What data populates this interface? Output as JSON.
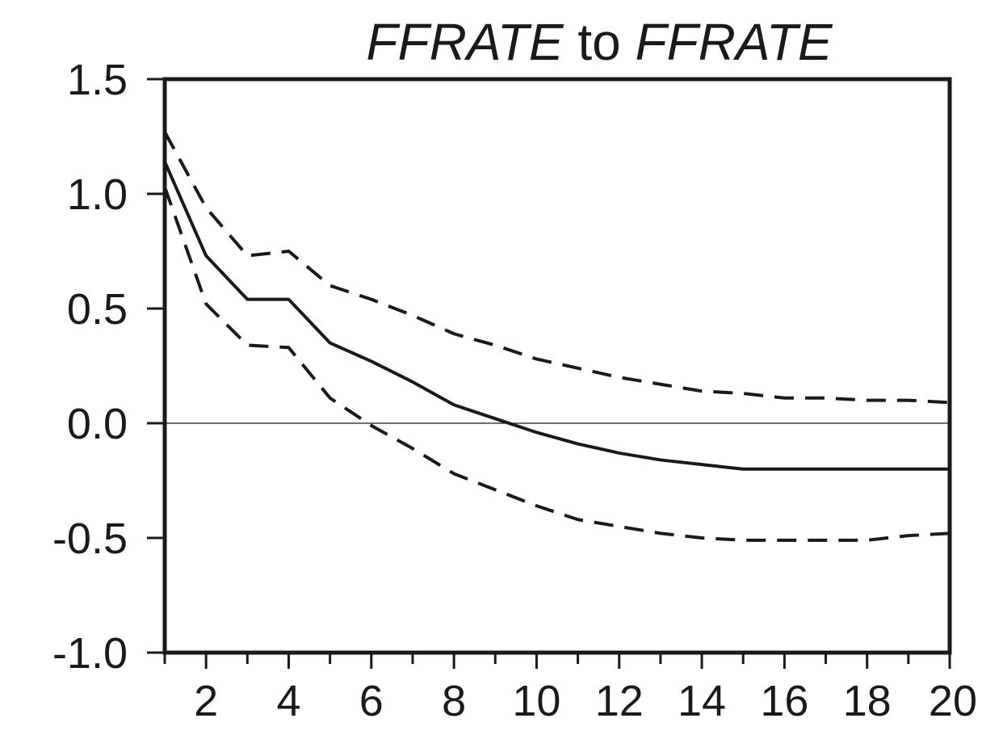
{
  "chart_data": {
    "type": "line",
    "title": "FFRATE to FFRATE",
    "title_parts": [
      {
        "text": "FFRATE",
        "italic": true
      },
      {
        "text": " to ",
        "italic": false
      },
      {
        "text": "FFRATE",
        "italic": true
      }
    ],
    "xlabel": "",
    "ylabel": "",
    "xlim": [
      1,
      20
    ],
    "ylim": [
      -1.0,
      1.5
    ],
    "x_ticks": [
      2,
      4,
      6,
      8,
      10,
      12,
      14,
      16,
      18,
      20
    ],
    "x_tick_labels": [
      "2",
      "4",
      "6",
      "8",
      "10",
      "12",
      "14",
      "16",
      "18",
      "20"
    ],
    "y_ticks": [
      1.5,
      1.0,
      0.5,
      0.0,
      -0.5,
      -1.0
    ],
    "y_tick_labels": [
      "1.5",
      "1.0",
      "0.5",
      "0.0",
      "-0.5",
      "-1.0"
    ],
    "zero_line": true,
    "grid": false,
    "x": [
      1,
      2,
      3,
      4,
      5,
      6,
      7,
      8,
      9,
      10,
      11,
      12,
      13,
      14,
      15,
      16,
      17,
      18,
      19,
      20
    ],
    "series": [
      {
        "style": "solid",
        "color": "#1a1a1a",
        "values": [
          1.14,
          0.73,
          0.54,
          0.54,
          0.35,
          0.27,
          0.18,
          0.08,
          0.02,
          -0.04,
          -0.09,
          -0.13,
          -0.16,
          -0.18,
          -0.2,
          -0.2,
          -0.2,
          -0.2,
          -0.2,
          -0.2
        ]
      },
      {
        "style": "dashed",
        "color": "#1a1a1a",
        "values": [
          1.27,
          0.94,
          0.73,
          0.75,
          0.6,
          0.54,
          0.47,
          0.39,
          0.34,
          0.28,
          0.24,
          0.2,
          0.17,
          0.14,
          0.13,
          0.11,
          0.11,
          0.1,
          0.1,
          0.09
        ]
      },
      {
        "style": "dashed",
        "color": "#1a1a1a",
        "values": [
          1.03,
          0.52,
          0.34,
          0.33,
          0.11,
          -0.01,
          -0.11,
          -0.22,
          -0.29,
          -0.36,
          -0.42,
          -0.45,
          -0.48,
          -0.5,
          -0.51,
          -0.51,
          -0.51,
          -0.51,
          -0.49,
          -0.48
        ]
      }
    ]
  }
}
